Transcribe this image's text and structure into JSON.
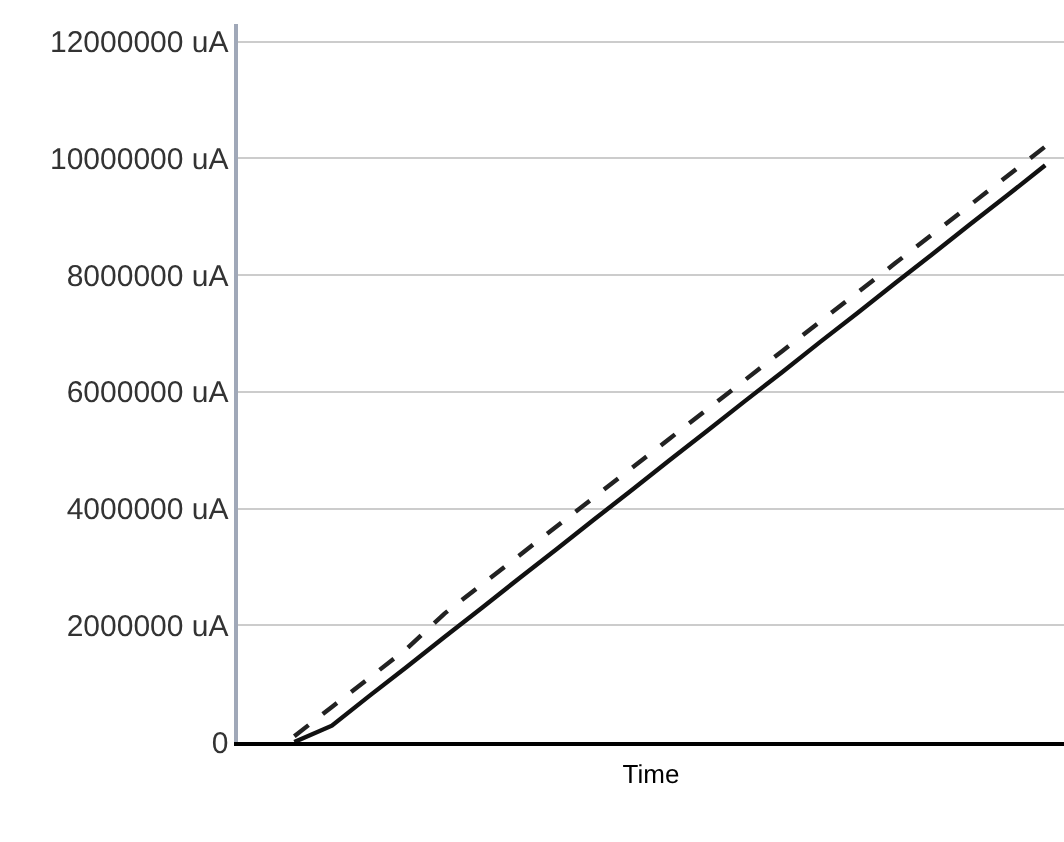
{
  "chart_data": {
    "type": "line",
    "xlabel": "Time",
    "categories": [
      null,
      null,
      null,
      null,
      null,
      null,
      null,
      null,
      null,
      null,
      null,
      null,
      null,
      null,
      null,
      null,
      null,
      null,
      null,
      null,
      null,
      null
    ],
    "series": [
      {
        "color": "#222222",
        "line_style": "dashed",
        "values": [
          null,
          100000,
          600000,
          1100000,
          1600000,
          2200000,
          2700000,
          3200000,
          3700000,
          4200000,
          4700000,
          5200000,
          5700000,
          6200000,
          6700000,
          7200000,
          7700000,
          8200000,
          8700000,
          9200000,
          9700000,
          10200000
        ]
      },
      {
        "color": "#111111",
        "line_style": "solid",
        "values": [
          null,
          0,
          280000,
          790000,
          1290000,
          1800000,
          2300000,
          2810000,
          3310000,
          3820000,
          4320000,
          4830000,
          5330000,
          5840000,
          6340000,
          6850000,
          7350000,
          7860000,
          8360000,
          8870000,
          9370000,
          9880000
        ]
      }
    ],
    "ylim": [
      0,
      12300000
    ],
    "yticks": [
      {
        "value": 0,
        "label": "0"
      },
      {
        "value": 2000000,
        "label": "2000000 uA"
      },
      {
        "value": 4000000,
        "label": "4000000 uA"
      },
      {
        "value": 6000000,
        "label": "6000000 uA"
      },
      {
        "value": 8000000,
        "label": "8000000 uA"
      },
      {
        "value": 10000000,
        "label": "10000000 uA"
      },
      {
        "value": 12000000,
        "label": "12000000 uA"
      }
    ],
    "grid": "y",
    "marker": "none"
  }
}
